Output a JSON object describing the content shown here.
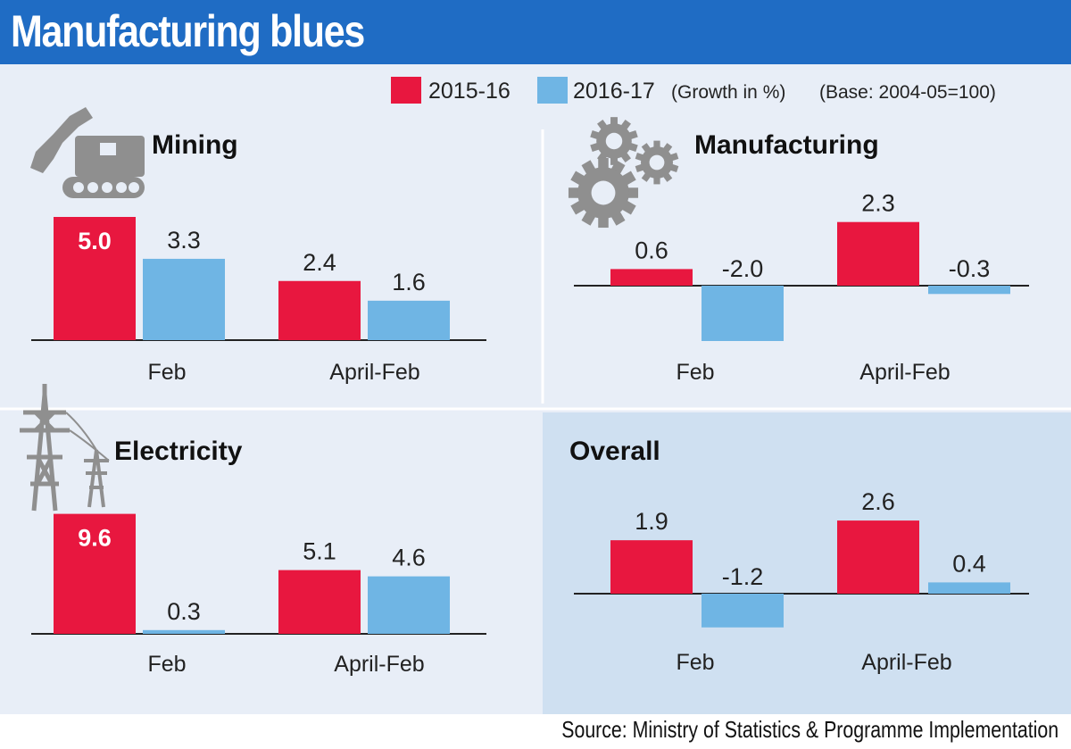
{
  "title": "Manufacturing blues",
  "source": "Source: Ministry of Statistics & Programme Implementation",
  "legend": {
    "items": [
      "2015-16",
      "2016-17"
    ],
    "note": "(Growth in %)",
    "base": "(Base: 2004-05=100)"
  },
  "colors": {
    "header": "#1f6cc4",
    "series_2015_16": "#e8173f",
    "series_2016_17": "#6fb5e4",
    "panel_bg": "#e8eef7",
    "overall_bg": "#cfe0f1",
    "icon": "#8f8f8f"
  },
  "icons": [
    "excavator-icon",
    "gears-icon",
    "transmission-tower-icon"
  ],
  "chart_data": [
    {
      "type": "bar",
      "title": "Mining",
      "categories": [
        "Feb",
        "April-Feb"
      ],
      "series": [
        {
          "name": "2015-16",
          "values": [
            5.0,
            2.4
          ],
          "labels": [
            "5.0",
            "2.4"
          ]
        },
        {
          "name": "2016-17",
          "values": [
            3.3,
            1.6
          ],
          "labels": [
            "3.3",
            "1.6"
          ]
        }
      ]
    },
    {
      "type": "bar",
      "title": "Manufacturing",
      "categories": [
        "Feb",
        "April-Feb"
      ],
      "series": [
        {
          "name": "2015-16",
          "values": [
            0.6,
            2.3
          ],
          "labels": [
            "0.6",
            "2.3"
          ]
        },
        {
          "name": "2016-17",
          "values": [
            -2.0,
            -0.3
          ],
          "labels": [
            "-2.0",
            "-0.3"
          ]
        }
      ]
    },
    {
      "type": "bar",
      "title": "Electricity",
      "categories": [
        "Feb",
        "April-Feb"
      ],
      "series": [
        {
          "name": "2015-16",
          "values": [
            9.6,
            5.1
          ],
          "labels": [
            "9.6",
            "5.1"
          ]
        },
        {
          "name": "2016-17",
          "values": [
            0.3,
            4.6
          ],
          "labels": [
            "0.3",
            "4.6"
          ]
        }
      ]
    },
    {
      "type": "bar",
      "title": "Overall",
      "categories": [
        "Feb",
        "April-Feb"
      ],
      "series": [
        {
          "name": "2015-16",
          "values": [
            1.9,
            2.6
          ],
          "labels": [
            "1.9",
            "2.6"
          ]
        },
        {
          "name": "2016-17",
          "values": [
            -1.2,
            0.4
          ],
          "labels": [
            "-1.2",
            "0.4"
          ]
        }
      ]
    }
  ]
}
